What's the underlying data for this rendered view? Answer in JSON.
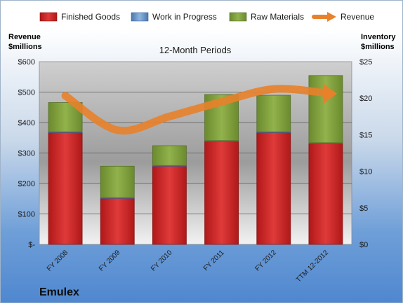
{
  "chart_data": {
    "type": "bar",
    "title": "12-Month Periods",
    "company": "Emulex",
    "left_axis_label": "Revenue\n$millions",
    "right_axis_label": "Inventory\n$millions",
    "categories": [
      "FY 2008",
      "FY 2009",
      "FY 2010",
      "FY 2011",
      "FY 2012",
      "TTM 12-2012"
    ],
    "left_ticks": [
      "$-",
      "$100",
      "$200",
      "$300",
      "$400",
      "$500",
      "$600"
    ],
    "right_ticks": [
      "$0",
      "$5",
      "$10",
      "$15",
      "$20",
      "$25"
    ],
    "ylim_right": [
      0,
      25
    ],
    "ylim_left": [
      0,
      600
    ],
    "legend_position": "top",
    "grid": true,
    "series": [
      {
        "name": "Finished Goods",
        "kind": "bar",
        "axis": "right",
        "color": "#cc2222",
        "values": [
          15.3,
          6.3,
          10.7,
          14.1,
          15.3,
          13.8
        ]
      },
      {
        "name": "Work in Progress",
        "kind": "bar",
        "axis": "right",
        "color": "#4f81bd",
        "values": [
          0.1,
          0.1,
          0.1,
          0.1,
          0.1,
          0.1
        ]
      },
      {
        "name": "Raw Materials",
        "kind": "bar",
        "axis": "right",
        "color": "#7a9a3a",
        "values": [
          4.0,
          4.3,
          2.7,
          6.3,
          5.0,
          9.2
        ]
      },
      {
        "name": "Revenue",
        "kind": "line",
        "axis": "left",
        "color": "#e8812a",
        "values": [
          488,
          375,
          420,
          468,
          510,
          497
        ]
      }
    ]
  }
}
